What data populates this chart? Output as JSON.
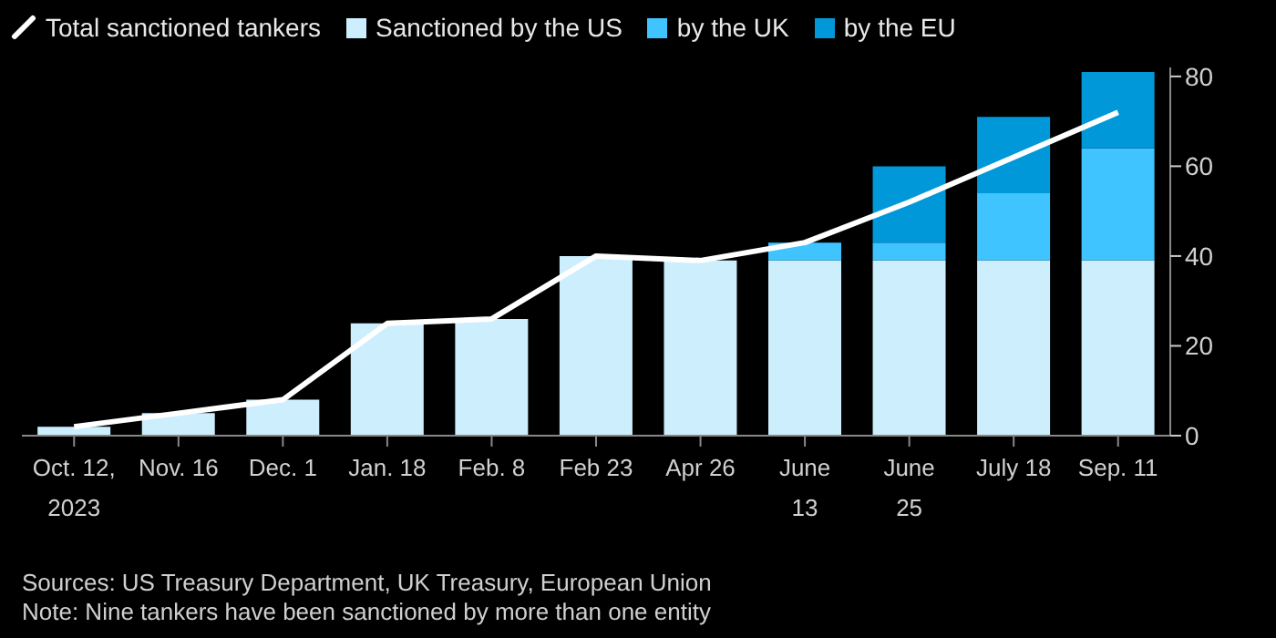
{
  "chart_data": {
    "type": "bar",
    "stacked": true,
    "categories": [
      "Oct. 12,\n2023",
      "Nov. 16",
      "Dec. 1",
      "Jan. 18",
      "Feb. 8",
      "Feb 23",
      "Apr 26",
      "June\n13",
      "June\n25",
      "July 18",
      "Sep. 11"
    ],
    "series": [
      {
        "name": "Total sanctioned tankers",
        "type": "line",
        "color": "#ffffff",
        "values": [
          2,
          5,
          8,
          25,
          26,
          40,
          39,
          43,
          52,
          62,
          72
        ]
      },
      {
        "name": "Sanctioned by the US",
        "color": "#cdeefc",
        "values": [
          2,
          5,
          8,
          25,
          26,
          40,
          39,
          39,
          39,
          39,
          39
        ]
      },
      {
        "name": "by the UK",
        "color": "#40c4ff",
        "values": [
          null,
          null,
          null,
          null,
          null,
          null,
          null,
          4,
          4,
          15,
          25
        ]
      },
      {
        "name": "by the EU",
        "color": "#0098d8",
        "values": [
          null,
          null,
          null,
          null,
          null,
          null,
          null,
          null,
          17,
          17,
          17
        ]
      }
    ],
    "ylim": [
      0,
      82
    ],
    "yticks": [
      0,
      20,
      40,
      60,
      80
    ],
    "grid": false,
    "legend": "top left",
    "marker": "none",
    "annotations": [
      "Sources: US Treasury Department, UK Treasury, European Union",
      "Note: Nine tankers have been sanctioned by more than one entity"
    ]
  }
}
